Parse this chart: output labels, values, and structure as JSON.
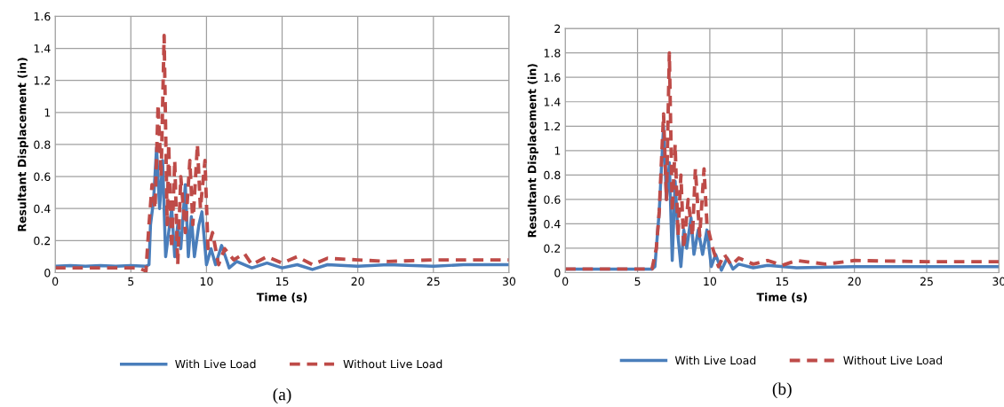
{
  "chart_data": [
    {
      "type": "line",
      "xlabel": "Time (s)",
      "ylabel": "Resultant Displacement (in)",
      "xlim": [
        0,
        30
      ],
      "xticks": [
        0,
        5,
        10,
        15,
        20,
        25,
        30
      ],
      "ylim": [
        0,
        1.6
      ],
      "yticks": [
        0,
        0.2,
        0.4,
        0.6,
        0.8,
        1,
        1.2,
        1.4,
        1.6
      ],
      "grid": true,
      "legend": "bottom",
      "annotations": [
        "(a)"
      ],
      "series": [
        {
          "name": "With Live Load",
          "color": "#4a7ebb",
          "line_style": "solid",
          "x": [
            0,
            1,
            2,
            3,
            4,
            5,
            6,
            6.2,
            6.3,
            6.5,
            6.7,
            6.9,
            7.1,
            7.3,
            7.5,
            7.7,
            7.9,
            8.1,
            8.3,
            8.6,
            8.8,
            9.0,
            9.2,
            9.5,
            9.7,
            10,
            10.3,
            10.6,
            11,
            11.5,
            12,
            13,
            14,
            15,
            16,
            17,
            18,
            20,
            22,
            25,
            27,
            30
          ],
          "values": [
            0.04,
            0.045,
            0.04,
            0.045,
            0.04,
            0.045,
            0.04,
            0.05,
            0.3,
            0.45,
            0.78,
            0.4,
            0.7,
            0.1,
            0.25,
            0.4,
            0.1,
            0.3,
            0.15,
            0.55,
            0.1,
            0.35,
            0.1,
            0.3,
            0.38,
            0.05,
            0.15,
            0.05,
            0.17,
            0.03,
            0.07,
            0.03,
            0.06,
            0.03,
            0.05,
            0.02,
            0.05,
            0.04,
            0.05,
            0.04,
            0.05,
            0.05
          ]
        },
        {
          "name": "Without Live Load",
          "color": "#be4b48",
          "line_style": "dashed",
          "x": [
            0,
            2,
            4,
            5.5,
            6.0,
            6.2,
            6.4,
            6.6,
            6.8,
            7.0,
            7.2,
            7.4,
            7.5,
            7.7,
            7.9,
            8.1,
            8.3,
            8.6,
            8.9,
            9.1,
            9.4,
            9.6,
            9.9,
            10.1,
            10.4,
            10.8,
            11.2,
            11.8,
            12.5,
            13,
            14,
            15,
            16,
            17,
            18,
            20,
            22,
            25,
            30
          ],
          "values": [
            0.03,
            0.03,
            0.03,
            0.03,
            0.01,
            0.3,
            0.55,
            0.4,
            1.05,
            0.6,
            1.48,
            0.3,
            0.8,
            0.15,
            0.7,
            0.05,
            0.6,
            0.25,
            0.7,
            0.3,
            0.8,
            0.4,
            0.7,
            0.15,
            0.25,
            0.05,
            0.15,
            0.08,
            0.12,
            0.05,
            0.1,
            0.06,
            0.1,
            0.05,
            0.09,
            0.08,
            0.07,
            0.08,
            0.08
          ]
        }
      ]
    },
    {
      "type": "line",
      "xlabel": "Time (s)",
      "ylabel": "Resultant Displacement (in)",
      "xlim": [
        0,
        30
      ],
      "xticks": [
        0,
        5,
        10,
        15,
        20,
        25,
        30
      ],
      "ylim": [
        0,
        2
      ],
      "yticks": [
        0,
        0.2,
        0.4,
        0.6,
        0.8,
        1,
        1.2,
        1.4,
        1.6,
        1.8,
        2
      ],
      "grid": true,
      "legend": "bottom",
      "annotations": [
        "(b)"
      ],
      "series": [
        {
          "name": "With Live Load",
          "color": "#4a7ebb",
          "line_style": "solid",
          "x": [
            0,
            2,
            4,
            6,
            6.2,
            6.5,
            6.8,
            7.0,
            7.2,
            7.4,
            7.6,
            7.8,
            8,
            8.2,
            8.4,
            8.7,
            8.9,
            9.2,
            9.5,
            9.8,
            10.1,
            10.4,
            10.8,
            11.2,
            11.6,
            12,
            13,
            14,
            16,
            20,
            25,
            30
          ],
          "values": [
            0.03,
            0.03,
            0.03,
            0.03,
            0.05,
            0.5,
            1.2,
            0.6,
            0.9,
            0.1,
            0.75,
            0.3,
            0.05,
            0.35,
            0.2,
            0.45,
            0.15,
            0.35,
            0.15,
            0.35,
            0.05,
            0.15,
            0.02,
            0.12,
            0.03,
            0.07,
            0.04,
            0.06,
            0.04,
            0.05,
            0.05,
            0.05
          ]
        },
        {
          "name": "Without Live Load",
          "color": "#be4b48",
          "line_style": "dashed",
          "x": [
            0,
            2,
            4,
            6,
            6.3,
            6.5,
            6.8,
            7.0,
            7.2,
            7.4,
            7.6,
            7.8,
            8.0,
            8.2,
            8.5,
            8.8,
            9.0,
            9.3,
            9.6,
            9.8,
            10.2,
            10.6,
            11,
            11.5,
            12,
            13,
            14,
            15,
            16,
            18,
            20,
            25,
            30
          ],
          "values": [
            0.03,
            0.03,
            0.03,
            0.03,
            0.2,
            0.5,
            1.3,
            0.6,
            1.8,
            0.5,
            1.05,
            0.3,
            0.8,
            0.2,
            0.6,
            0.3,
            0.85,
            0.3,
            0.85,
            0.4,
            0.2,
            0.05,
            0.15,
            0.06,
            0.12,
            0.07,
            0.1,
            0.06,
            0.1,
            0.07,
            0.1,
            0.09,
            0.09
          ]
        }
      ]
    }
  ]
}
